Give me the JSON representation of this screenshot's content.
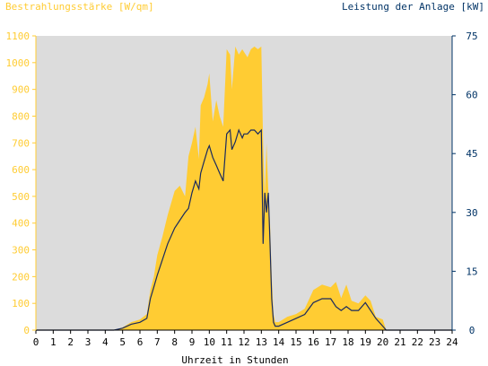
{
  "chart_data": {
    "type": "area",
    "left_axis_title": "Bestrahlungsstärke [W/qm]",
    "right_axis_title": "Leistung der Anlage [kW]",
    "xlabel": "Uhrzeit in Stunden",
    "x_ticks": [
      "0",
      "1",
      "2",
      "3",
      "4",
      "5",
      "6",
      "7",
      "8",
      "9",
      "10",
      "11",
      "12",
      "13",
      "14",
      "15",
      "16",
      "17",
      "18",
      "19",
      "20",
      "21",
      "22",
      "23",
      "24"
    ],
    "y_left_ticks": [
      "0",
      "100",
      "200",
      "300",
      "400",
      "500",
      "600",
      "700",
      "800",
      "900",
      "1000",
      "1100"
    ],
    "y_right_ticks": [
      "0",
      "15",
      "30",
      "45",
      "60",
      "75"
    ],
    "xlim": [
      0,
      24
    ],
    "ylim_left": [
      0,
      1100
    ],
    "ylim_right": [
      0,
      75
    ],
    "grid": false,
    "colors": {
      "plot_background": "#dcdcdc",
      "irradiance_fill": "#ffcc33",
      "power_line": "#1a2a5e",
      "left_axis_text": "#ffcc33",
      "right_axis_text": "#003366",
      "x_axis_text": "#000000",
      "x_axis_line": "#000000"
    },
    "series": [
      {
        "axis": "left",
        "style": "area",
        "x": [
          0,
          4.5,
          5,
          5.5,
          6,
          6.4,
          6.6,
          6.8,
          7,
          7.3,
          7.6,
          8,
          8.3,
          8.6,
          8.8,
          9,
          9.2,
          9.4,
          9.5,
          9.7,
          9.9,
          10,
          10.2,
          10.4,
          10.6,
          10.8,
          11,
          11.2,
          11.3,
          11.5,
          11.7,
          11.9,
          12,
          12.2,
          12.4,
          12.6,
          12.8,
          13,
          13.1,
          13.2,
          13.3,
          13.4,
          13.5,
          13.6,
          13.7,
          13.8,
          14,
          14.5,
          15,
          15.5,
          16,
          16.5,
          17,
          17.3,
          17.6,
          17.9,
          18.2,
          18.6,
          19,
          19.3,
          19.6,
          20,
          20.2,
          21,
          24
        ],
        "y": [
          0,
          0,
          10,
          30,
          40,
          60,
          150,
          200,
          280,
          350,
          430,
          520,
          540,
          500,
          650,
          700,
          760,
          640,
          840,
          870,
          920,
          960,
          780,
          860,
          800,
          760,
          1050,
          1030,
          900,
          1060,
          1030,
          1050,
          1040,
          1020,
          1050,
          1060,
          1050,
          1060,
          700,
          500,
          700,
          520,
          400,
          200,
          60,
          30,
          30,
          50,
          60,
          80,
          150,
          170,
          160,
          180,
          120,
          170,
          110,
          100,
          130,
          110,
          50,
          40,
          0,
          0,
          0
        ]
      },
      {
        "axis": "right",
        "style": "line",
        "x": [
          0,
          4.5,
          5,
          5.5,
          6,
          6.4,
          6.6,
          6.8,
          7,
          7.3,
          7.6,
          8,
          8.3,
          8.6,
          8.8,
          9,
          9.2,
          9.4,
          9.5,
          9.7,
          9.9,
          10,
          10.2,
          10.4,
          10.6,
          10.8,
          11,
          11.2,
          11.3,
          11.5,
          11.7,
          11.9,
          12,
          12.2,
          12.4,
          12.6,
          12.8,
          13,
          13.1,
          13.2,
          13.3,
          13.4,
          13.5,
          13.6,
          13.7,
          13.8,
          14,
          14.5,
          15,
          15.5,
          16,
          16.5,
          17,
          17.3,
          17.6,
          17.9,
          18.2,
          18.6,
          19,
          19.3,
          19.6,
          20,
          20.2,
          21,
          24
        ],
        "y": [
          0,
          0,
          0.5,
          1.5,
          2,
          3,
          8,
          11,
          14,
          18,
          22,
          26,
          28,
          30,
          31,
          35,
          38,
          36,
          40,
          43,
          46,
          47,
          44,
          42,
          40,
          38,
          50,
          51,
          46,
          48,
          51,
          49,
          50,
          50,
          51,
          51,
          50,
          51,
          22,
          35,
          30,
          35,
          22,
          8,
          2,
          1,
          1,
          2,
          3,
          4,
          7,
          8,
          8,
          6,
          5,
          6,
          5,
          5,
          7,
          5,
          3,
          1,
          0,
          0,
          0
        ]
      }
    ]
  }
}
